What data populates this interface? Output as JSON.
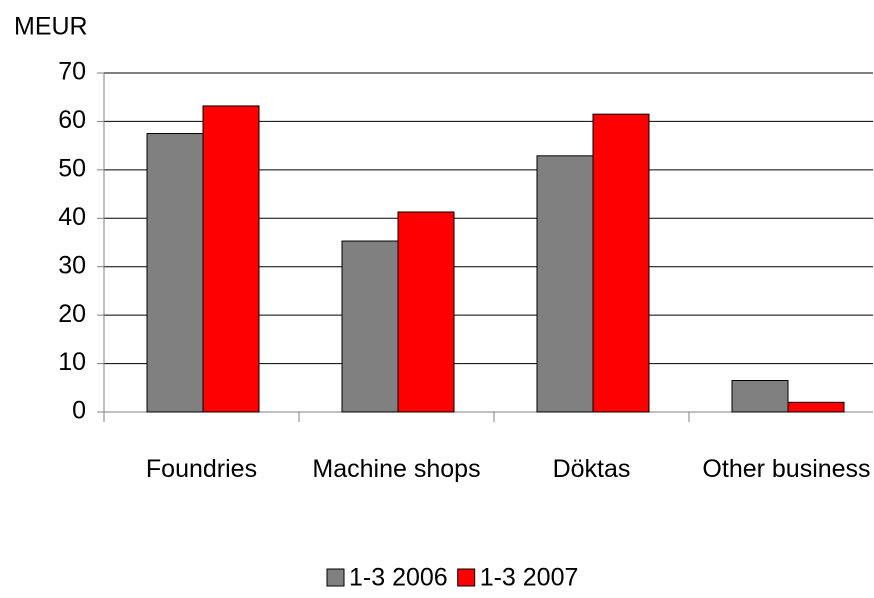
{
  "chart_data": {
    "type": "bar",
    "y_axis_label": "MEUR",
    "categories": [
      "Foundries",
      "Machine shops",
      "Döktas",
      "Other business"
    ],
    "series": [
      {
        "name": "1-3 2006",
        "color": "#808080",
        "values": [
          57.5,
          35.3,
          52.9,
          6.5
        ]
      },
      {
        "name": "1-3 2007",
        "color": "#ff0000",
        "values": [
          63.2,
          41.3,
          61.5,
          2.0
        ]
      }
    ],
    "ylim": [
      0,
      70
    ],
    "yticks": [
      0,
      10,
      20,
      30,
      40,
      50,
      60,
      70
    ],
    "grid": true,
    "legend": "bottom"
  }
}
